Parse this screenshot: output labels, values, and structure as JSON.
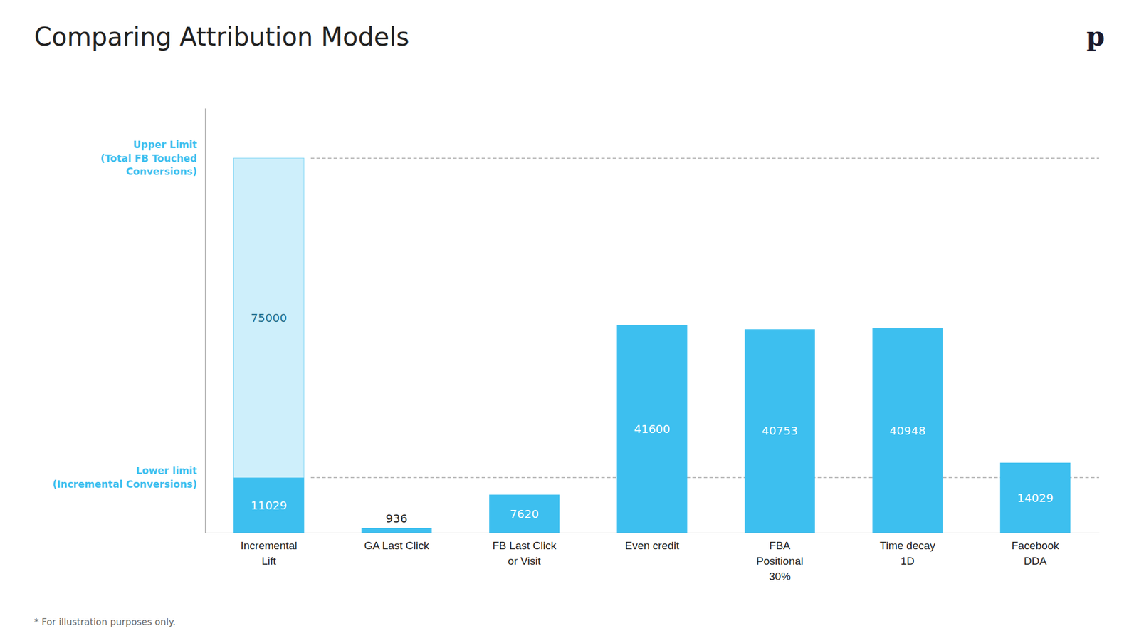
{
  "chart_data": {
    "type": "bar",
    "title": "Comparing Attribution Models",
    "categories": [
      "Incremental\nLift",
      "GA Last Click",
      "FB Last Click\nor Visit",
      "Even credit",
      "FBA\nPositional\n30%",
      "Time decay\n1D",
      "Facebook\nDDA"
    ],
    "values": [
      11029,
      936,
      7620,
      41600,
      40753,
      40948,
      14029
    ],
    "upper_value": 75000,
    "color": "#3dbfef",
    "ylim": [
      0,
      85000
    ],
    "data_labels": true,
    "tick_labels": "x",
    "grid": false,
    "annotations": [
      {
        "text": "Upper Limit\n(Total FB Touched\nConversions)",
        "y": 75000
      },
      {
        "text": "Lower limit\n(Incremental Conversions)",
        "y": 11029
      },
      {
        "text": "* For illustration purposes only."
      },
      {
        "text": "p"
      }
    ]
  }
}
